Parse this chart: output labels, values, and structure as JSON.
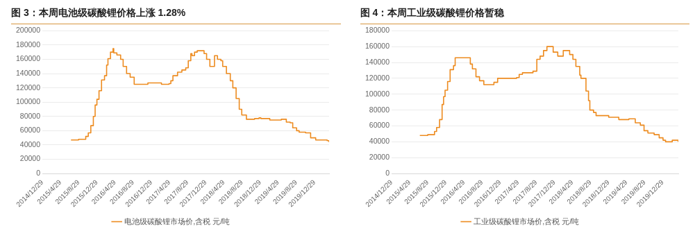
{
  "chart_data": [
    {
      "type": "step",
      "title": "图 3：本周电池级碳酸锂价格上涨 1.28%",
      "legend": "bottom",
      "grid": "y",
      "xlim": [
        "2014-12-29",
        "2020-04-05"
      ],
      "xticks": [
        {
          "value": "2014-12-29",
          "label": "2014/12/29"
        },
        {
          "value": "2015-04-29",
          "label": "2015/4/29"
        },
        {
          "value": "2015-08-29",
          "label": "2015/8/29"
        },
        {
          "value": "2015-12-29",
          "label": "2015/12/29"
        },
        {
          "value": "2016-04-29",
          "label": "2016/4/29"
        },
        {
          "value": "2016-08-29",
          "label": "2016/8/29"
        },
        {
          "value": "2016-12-29",
          "label": "2016/12/29"
        },
        {
          "value": "2017-04-29",
          "label": "2017/4/29"
        },
        {
          "value": "2017-08-29",
          "label": "2017/8/29"
        },
        {
          "value": "2017-12-29",
          "label": "2017/12/29"
        },
        {
          "value": "2018-04-29",
          "label": "2018/4/29"
        },
        {
          "value": "2018-08-29",
          "label": "2018/8/29"
        },
        {
          "value": "2018-12-29",
          "label": "2018/12/29"
        },
        {
          "value": "2019-04-29",
          "label": "2019/4/29"
        },
        {
          "value": "2019-08-29",
          "label": "2019/8/29"
        },
        {
          "value": "2019-12-29",
          "label": "2019/12/29"
        }
      ],
      "ylim": [
        0,
        200000
      ],
      "yticks": [
        0,
        20000,
        40000,
        60000,
        80000,
        100000,
        120000,
        140000,
        160000,
        180000,
        200000
      ],
      "x": [
        "2015-07-09",
        "2015-08-29",
        "2015-10-16",
        "2015-11-02",
        "2015-11-19",
        "2015-12-06",
        "2015-12-18",
        "2015-12-30",
        "2016-01-13",
        "2016-01-30",
        "2016-02-19",
        "2016-03-04",
        "2016-03-13",
        "2016-03-30",
        "2016-04-16",
        "2016-04-21",
        "2016-05-12",
        "2016-06-06",
        "2016-06-23",
        "2016-07-16",
        "2016-08-09",
        "2016-09-05",
        "2016-12-06",
        "2017-03-07",
        "2017-04-27",
        "2017-05-09",
        "2017-05-23",
        "2017-06-23",
        "2017-07-22",
        "2017-08-17",
        "2017-09-03",
        "2017-09-20",
        "2017-09-28",
        "2017-10-15",
        "2017-11-02",
        "2017-12-18",
        "2018-01-04",
        "2018-01-26",
        "2018-02-26",
        "2018-03-18",
        "2018-04-10",
        "2018-04-22",
        "2018-05-17",
        "2018-06-12",
        "2018-06-29",
        "2018-07-21",
        "2018-08-11",
        "2018-08-28",
        "2018-09-28",
        "2018-11-22",
        "2018-12-22",
        "2019-01-03",
        "2019-03-04",
        "2019-05-20",
        "2019-06-23",
        "2019-07-19",
        "2019-08-05",
        "2019-08-31",
        "2019-09-17",
        "2019-10-30",
        "2019-12-03",
        "2020-01-06",
        "2020-03-23",
        "2020-04-04"
      ],
      "series": [
        {
          "name": "电池级碳酸锂市场价,含税 元/吨",
          "color": "#ed8b1f",
          "values": [
            47000,
            48000,
            52000,
            57000,
            67000,
            80000,
            96000,
            104000,
            116000,
            131000,
            137000,
            152000,
            161000,
            170000,
            175000,
            169000,
            166000,
            160000,
            150000,
            140000,
            135000,
            125000,
            127000,
            125000,
            126000,
            130000,
            137000,
            142000,
            145000,
            148000,
            158000,
            168000,
            165000,
            170000,
            172000,
            168000,
            160000,
            150000,
            165000,
            160000,
            158000,
            150000,
            140000,
            130000,
            120000,
            105000,
            90000,
            82000,
            76000,
            77000,
            78000,
            77000,
            75000,
            76000,
            72000,
            71000,
            64000,
            60000,
            58000,
            57000,
            50000,
            47000,
            46000,
            44000
          ]
        }
      ]
    },
    {
      "type": "step",
      "title": "图 4：本周工业级碳酸锂价格暂稳",
      "legend": "bottom",
      "grid": "y",
      "xlim": [
        "2014-12-29",
        "2020-04-12"
      ],
      "xticks": [
        {
          "value": "2014-12-29",
          "label": "2014/12/29"
        },
        {
          "value": "2015-04-29",
          "label": "2015/4/29"
        },
        {
          "value": "2015-08-29",
          "label": "2015/8/29"
        },
        {
          "value": "2015-12-29",
          "label": "2015/12/29"
        },
        {
          "value": "2016-04-29",
          "label": "2016/4/29"
        },
        {
          "value": "2016-08-29",
          "label": "2016/8/29"
        },
        {
          "value": "2016-12-29",
          "label": "2016/12/29"
        },
        {
          "value": "2017-04-29",
          "label": "2017/4/29"
        },
        {
          "value": "2017-08-29",
          "label": "2017/8/29"
        },
        {
          "value": "2017-12-29",
          "label": "2017/12/29"
        },
        {
          "value": "2018-04-29",
          "label": "2018/4/29"
        },
        {
          "value": "2018-08-29",
          "label": "2018/8/29"
        },
        {
          "value": "2018-12-29",
          "label": "2018/12/29"
        },
        {
          "value": "2019-04-29",
          "label": "2019/4/29"
        },
        {
          "value": "2019-08-29",
          "label": "2019/8/29"
        },
        {
          "value": "2019-12-29",
          "label": "2019/12/29"
        }
      ],
      "ylim": [
        0,
        180000
      ],
      "yticks": [
        0,
        20000,
        40000,
        60000,
        80000,
        100000,
        120000,
        140000,
        160000,
        180000
      ],
      "x": [
        "2015-07-07",
        "2015-08-29",
        "2015-10-14",
        "2015-10-28",
        "2015-11-17",
        "2015-12-04",
        "2015-12-14",
        "2015-12-24",
        "2016-01-10",
        "2016-01-27",
        "2016-02-19",
        "2016-03-01",
        "2016-06-05",
        "2016-06-11",
        "2016-06-25",
        "2016-07-19",
        "2016-08-12",
        "2016-09-10",
        "2016-11-17",
        "2016-12-12",
        "2017-04-19",
        "2017-05-06",
        "2017-05-28",
        "2017-08-07",
        "2017-09-02",
        "2017-09-24",
        "2017-10-17",
        "2017-11-09",
        "2017-12-21",
        "2018-01-21",
        "2018-02-27",
        "2018-04-11",
        "2018-05-03",
        "2018-05-23",
        "2018-06-18",
        "2018-06-26",
        "2018-07-30",
        "2018-08-16",
        "2018-08-25",
        "2018-09-19",
        "2018-10-06",
        "2018-12-30",
        "2019-03-08",
        "2019-05-15",
        "2019-06-27",
        "2019-07-31",
        "2019-08-25",
        "2019-09-20",
        "2019-11-01",
        "2019-12-05",
        "2019-12-31",
        "2020-01-17",
        "2020-03-02",
        "2020-04-11"
      ],
      "series": [
        {
          "name": "工业级碳酸锂市场价,含税 元/吨",
          "color": "#ed8b1f",
          "values": [
            48000,
            49000,
            53000,
            58000,
            68000,
            87000,
            97000,
            105000,
            116000,
            131000,
            136000,
            146000,
            146000,
            138000,
            132000,
            122000,
            117000,
            112000,
            115000,
            120000,
            121000,
            125000,
            127000,
            129000,
            144000,
            148000,
            155000,
            160000,
            153000,
            148000,
            155000,
            150000,
            144000,
            135000,
            124000,
            120000,
            104000,
            92000,
            80000,
            77000,
            73000,
            71000,
            68000,
            69000,
            64000,
            61000,
            54000,
            51000,
            49000,
            45000,
            42000,
            40000,
            42000,
            40000
          ]
        }
      ]
    }
  ]
}
